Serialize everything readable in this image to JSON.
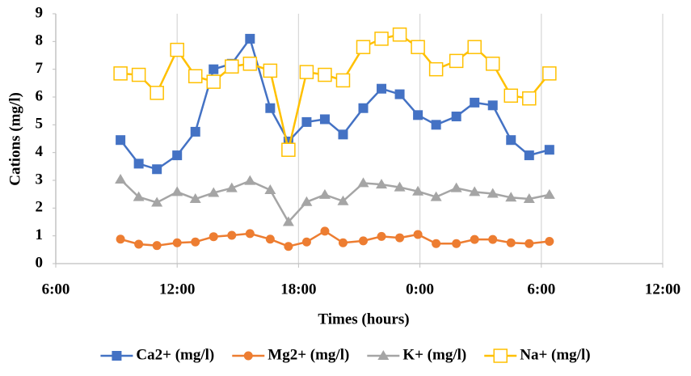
{
  "chart_data": {
    "type": "line",
    "x_label": "Times (hours)",
    "y_label": "Cations (mg/l)",
    "x": [
      9.2,
      10.1,
      11.0,
      12.0,
      12.9,
      13.8,
      14.7,
      15.6,
      16.6,
      17.5,
      18.4,
      19.3,
      20.2,
      21.2,
      22.1,
      23.0,
      23.9,
      24.8,
      25.8,
      26.7,
      27.6,
      28.5,
      29.4,
      30.4
    ],
    "series": [
      {
        "name": "Ca2+ (mg/l)",
        "color": "#4472c4",
        "marker": "square",
        "values": [
          4.45,
          3.6,
          3.4,
          3.9,
          4.75,
          7.0,
          7.2,
          8.1,
          5.6,
          4.4,
          5.1,
          5.2,
          4.65,
          5.6,
          6.3,
          6.1,
          5.35,
          5.0,
          5.3,
          5.8,
          5.7,
          4.45,
          3.9,
          4.1
        ]
      },
      {
        "name": "Mg2+ (mg/l)",
        "color": "#ed7d31",
        "marker": "circle",
        "values": [
          0.88,
          0.7,
          0.65,
          0.75,
          0.78,
          0.97,
          1.02,
          1.08,
          0.88,
          0.62,
          0.78,
          1.17,
          0.75,
          0.82,
          0.98,
          0.93,
          1.05,
          0.72,
          0.72,
          0.87,
          0.87,
          0.75,
          0.72,
          0.8
        ]
      },
      {
        "name": "K+ (mg/l)",
        "color": "#a5a5a5",
        "marker": "triangle",
        "values": [
          3.03,
          2.4,
          2.2,
          2.58,
          2.33,
          2.55,
          2.72,
          2.98,
          2.65,
          1.5,
          2.22,
          2.48,
          2.25,
          2.9,
          2.85,
          2.75,
          2.6,
          2.4,
          2.72,
          2.58,
          2.52,
          2.38,
          2.33,
          2.48
        ]
      },
      {
        "name": "Na+ (mg/l)",
        "color": "#ffc000",
        "marker": "open-square",
        "values": [
          6.85,
          6.8,
          6.15,
          7.7,
          6.75,
          6.55,
          7.1,
          7.2,
          6.95,
          4.1,
          6.9,
          6.8,
          6.6,
          7.8,
          8.1,
          8.25,
          7.8,
          7.0,
          7.3,
          7.8,
          7.2,
          6.05,
          5.95,
          6.85
        ]
      }
    ],
    "xlim": [
      6,
      36
    ],
    "xticks": [
      {
        "value": 6,
        "label": "6:00"
      },
      {
        "value": 12,
        "label": "12:00"
      },
      {
        "value": 18,
        "label": "18:00"
      },
      {
        "value": 24,
        "label": "0:00"
      },
      {
        "value": 30,
        "label": "6:00"
      },
      {
        "value": 36,
        "label": "12:00"
      }
    ],
    "ylim": [
      0,
      9
    ],
    "yticks": [
      0,
      1,
      2,
      3,
      4,
      5,
      6,
      7,
      8,
      9
    ],
    "grid": "x",
    "legend": "bottom"
  }
}
